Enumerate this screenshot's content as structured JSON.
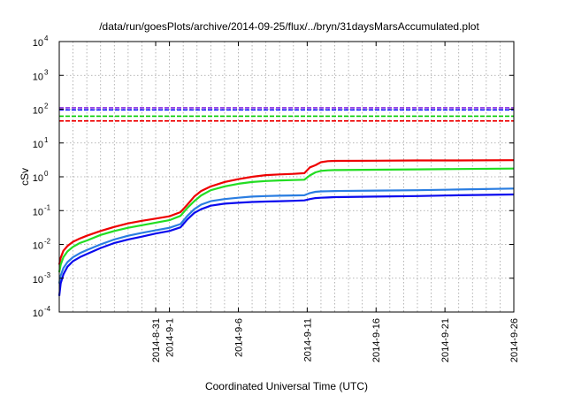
{
  "chart_data": {
    "type": "line",
    "title": "/data/run/goesPlots/archive/2014-09-25/flux/../bryn/31daysMarsAccumulated.plot",
    "xlabel": "Coordinated Universal Time (UTC)",
    "ylabel": "cSv",
    "yscale": "log",
    "ylim": [
      0.0001,
      10000
    ],
    "xlim": [
      24.0,
      57.0
    ],
    "grid": true,
    "y_ticks": [
      {
        "value": 0.0001,
        "base": "10",
        "exp": "-4"
      },
      {
        "value": 0.001,
        "base": "10",
        "exp": "-3"
      },
      {
        "value": 0.01,
        "base": "10",
        "exp": "-2"
      },
      {
        "value": 0.1,
        "base": "10",
        "exp": "-1"
      },
      {
        "value": 1,
        "base": "10",
        "exp": "0"
      },
      {
        "value": 10,
        "base": "10",
        "exp": "1"
      },
      {
        "value": 100,
        "base": "10",
        "exp": "2"
      },
      {
        "value": 1000,
        "base": "10",
        "exp": "3"
      },
      {
        "value": 10000,
        "base": "10",
        "exp": "4"
      }
    ],
    "x_ticks": [
      {
        "value": 31,
        "label": "2014-8-31"
      },
      {
        "value": 32,
        "label": "2014-9-1"
      },
      {
        "value": 37,
        "label": "2014-9-6"
      },
      {
        "value": 42,
        "label": "2014-9-11"
      },
      {
        "value": 47,
        "label": "2014-9-16"
      },
      {
        "value": 52,
        "label": "2014-9-21"
      },
      {
        "value": 57,
        "label": "2014-9-26"
      }
    ],
    "x_gridlines": [
      24,
      25,
      26,
      27,
      28,
      29,
      30,
      31,
      32,
      33,
      34,
      35,
      36,
      37,
      38,
      39,
      40,
      41,
      42,
      43,
      44,
      45,
      46,
      47,
      48,
      49,
      50,
      51,
      52,
      53,
      54,
      55,
      56,
      57
    ],
    "reference_lines": [
      {
        "color": "#8a2be2",
        "y": 110
      },
      {
        "color": "#1010ff",
        "y": 95
      },
      {
        "color": "#00cc00",
        "y": 62
      },
      {
        "color": "#ee0000",
        "y": 45
      }
    ],
    "series": [
      {
        "color": "#ee0000",
        "x": [
          24.0,
          24.1,
          24.3,
          24.6,
          25.0,
          25.5,
          26.0,
          27.0,
          28.0,
          29.0,
          30.0,
          31.0,
          32.0,
          32.8,
          33.3,
          33.8,
          34.3,
          35.0,
          36.0,
          37.0,
          38.0,
          39.0,
          40.0,
          41.0,
          41.8,
          42.2,
          42.6,
          43.0,
          43.5,
          44.0,
          47.0,
          50.0,
          53.0,
          57.0
        ],
        "y": [
          0.0025,
          0.004,
          0.0065,
          0.009,
          0.012,
          0.015,
          0.018,
          0.025,
          0.033,
          0.042,
          0.05,
          0.058,
          0.068,
          0.09,
          0.15,
          0.26,
          0.38,
          0.52,
          0.7,
          0.85,
          1.0,
          1.12,
          1.18,
          1.22,
          1.28,
          1.9,
          2.2,
          2.7,
          2.9,
          2.95,
          3.0,
          3.05,
          3.05,
          3.1
        ]
      },
      {
        "color": "#22dd22",
        "x": [
          24.0,
          24.1,
          24.3,
          24.6,
          25.0,
          25.5,
          26.0,
          27.0,
          28.0,
          29.0,
          30.0,
          31.0,
          32.0,
          32.8,
          33.3,
          33.8,
          34.3,
          35.0,
          36.0,
          37.0,
          38.0,
          39.0,
          40.0,
          41.0,
          41.8,
          42.2,
          42.6,
          43.0,
          43.5,
          44.0,
          47.0,
          50.0,
          53.0,
          57.0
        ],
        "y": [
          0.0015,
          0.0025,
          0.0042,
          0.0062,
          0.0085,
          0.011,
          0.013,
          0.019,
          0.025,
          0.031,
          0.037,
          0.044,
          0.052,
          0.07,
          0.12,
          0.19,
          0.28,
          0.4,
          0.52,
          0.62,
          0.7,
          0.75,
          0.78,
          0.8,
          0.82,
          1.1,
          1.35,
          1.5,
          1.55,
          1.58,
          1.62,
          1.66,
          1.7,
          1.75
        ]
      },
      {
        "color": "#2a7de1",
        "x": [
          24.0,
          24.1,
          24.3,
          24.6,
          25.0,
          25.5,
          26.0,
          27.0,
          28.0,
          29.0,
          30.0,
          31.0,
          32.0,
          32.8,
          33.3,
          33.8,
          34.3,
          35.0,
          36.0,
          37.0,
          38.0,
          39.0,
          40.0,
          41.0,
          41.8,
          42.2,
          42.6,
          43.0,
          43.5,
          44.0,
          47.0,
          50.0,
          53.0,
          57.0
        ],
        "y": [
          0.0007,
          0.0012,
          0.002,
          0.003,
          0.0042,
          0.0055,
          0.0068,
          0.01,
          0.014,
          0.018,
          0.022,
          0.026,
          0.031,
          0.04,
          0.07,
          0.11,
          0.15,
          0.19,
          0.22,
          0.24,
          0.26,
          0.27,
          0.275,
          0.28,
          0.285,
          0.33,
          0.36,
          0.37,
          0.375,
          0.38,
          0.39,
          0.4,
          0.42,
          0.45
        ]
      },
      {
        "color": "#0a0aee",
        "x": [
          24.0,
          24.1,
          24.3,
          24.6,
          25.0,
          25.5,
          26.0,
          27.0,
          28.0,
          29.0,
          30.0,
          31.0,
          32.0,
          32.8,
          33.3,
          33.8,
          34.3,
          35.0,
          36.0,
          37.0,
          38.0,
          39.0,
          40.0,
          41.0,
          41.8,
          42.2,
          42.6,
          43.0,
          43.5,
          44.0,
          47.0,
          50.0,
          53.0,
          57.0
        ],
        "y": [
          0.0003,
          0.0007,
          0.0013,
          0.0022,
          0.0032,
          0.0042,
          0.0052,
          0.0078,
          0.011,
          0.014,
          0.017,
          0.021,
          0.025,
          0.032,
          0.055,
          0.085,
          0.11,
          0.14,
          0.16,
          0.17,
          0.18,
          0.185,
          0.19,
          0.195,
          0.2,
          0.22,
          0.235,
          0.24,
          0.245,
          0.25,
          0.26,
          0.27,
          0.285,
          0.3
        ]
      }
    ]
  }
}
